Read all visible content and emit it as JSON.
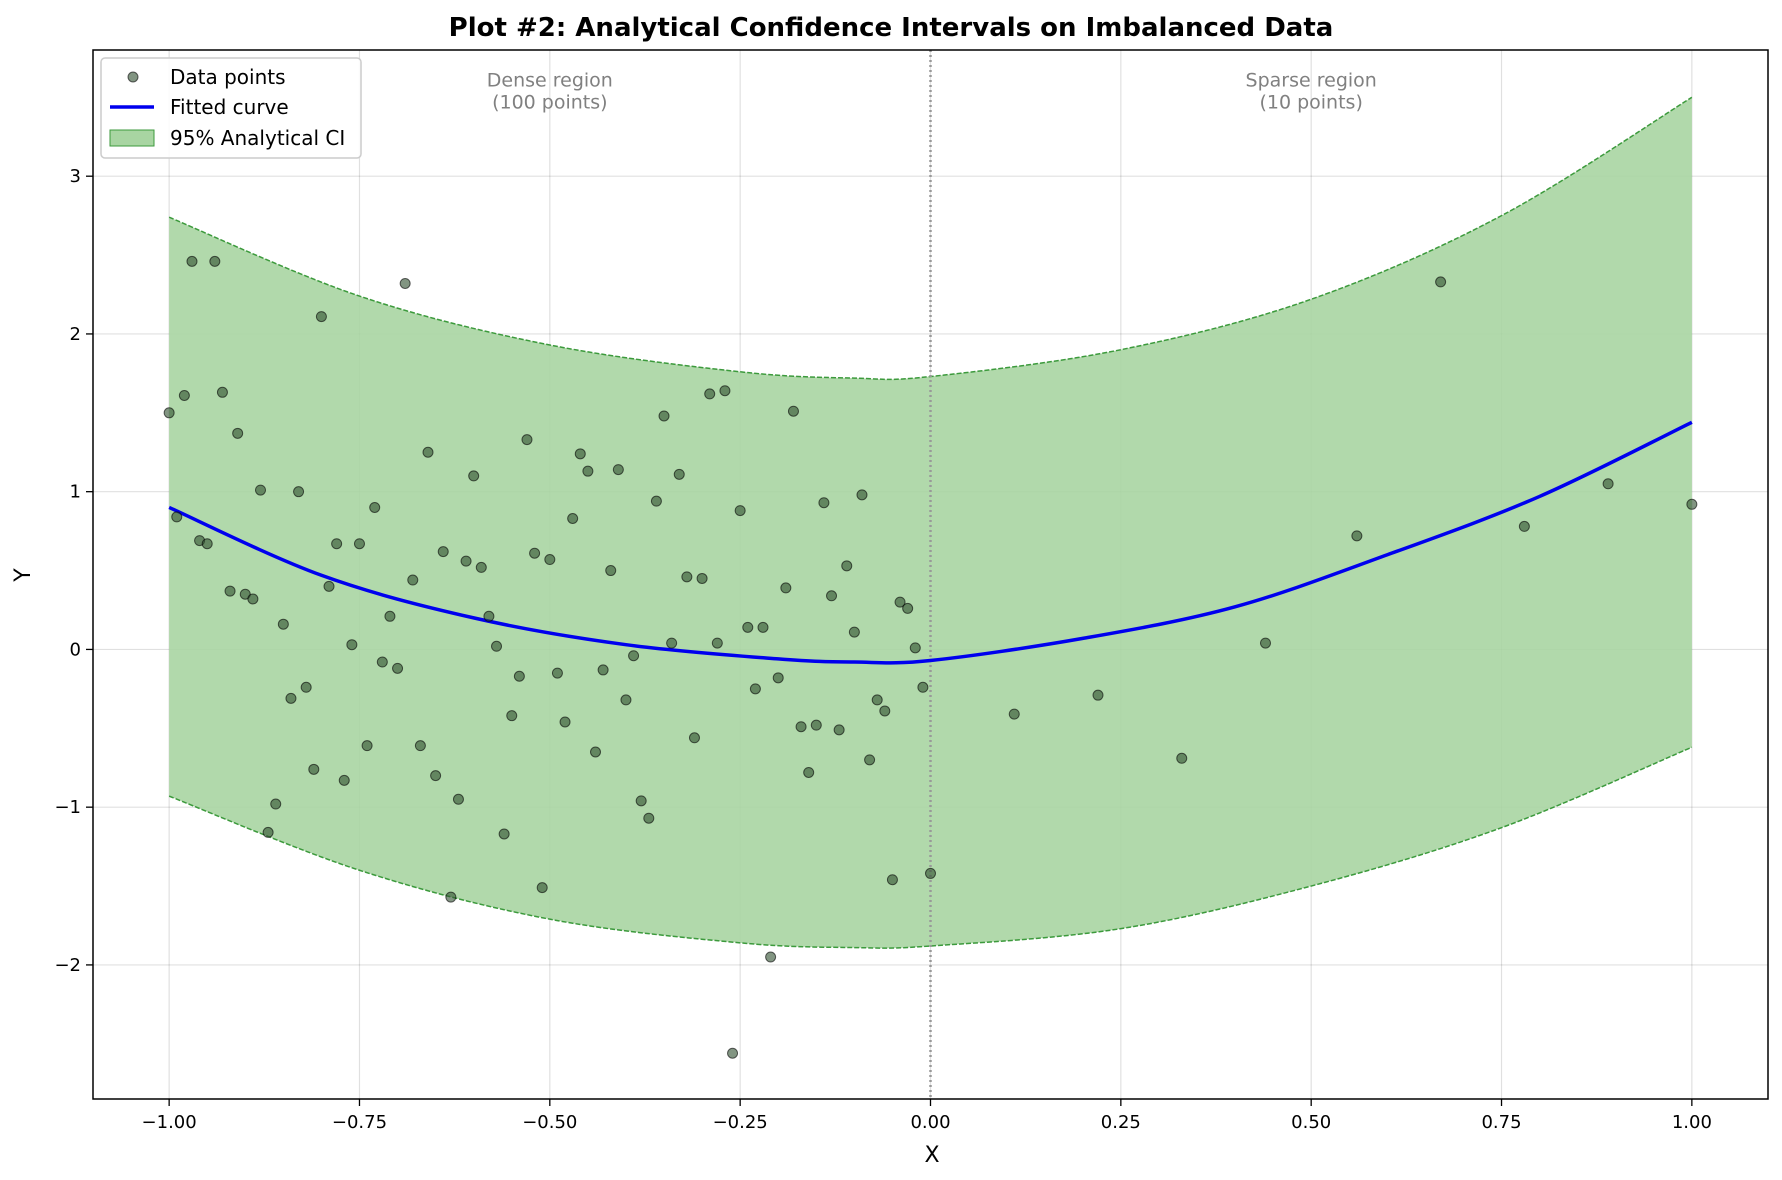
{
  "chart_data": {
    "type": "scatter",
    "title": "Plot #2: Analytical Confidence Intervals on Imbalanced Data",
    "xlabel": "X",
    "ylabel": "Y",
    "xlim": [
      -1.1,
      1.1
    ],
    "ylim": [
      -2.85,
      3.8
    ],
    "xticks": [
      -1.0,
      -0.75,
      -0.5,
      -0.25,
      0.0,
      0.25,
      0.5,
      0.75,
      1.0
    ],
    "xtick_labels": [
      "−1.00",
      "−0.75",
      "−0.50",
      "−0.25",
      "0.00",
      "0.25",
      "0.50",
      "0.75",
      "1.00"
    ],
    "yticks": [
      -2,
      -1,
      0,
      1,
      2,
      3
    ],
    "ytick_labels": [
      "−2",
      "−1",
      "0",
      "1",
      "2",
      "3"
    ],
    "grid": true,
    "legend_position": "top-left",
    "legend": [
      {
        "label": "Data points",
        "kind": "marker"
      },
      {
        "label": "Fitted curve",
        "kind": "line"
      },
      {
        "label": "95% Analytical CI",
        "kind": "patch"
      }
    ],
    "annotations": [
      {
        "lines": [
          "Dense region",
          "(100 points)"
        ],
        "x": -0.5,
        "y": 3.6
      },
      {
        "lines": [
          "Sparse region",
          "(10 points)"
        ],
        "x": 0.5,
        "y": 3.6
      }
    ],
    "vline_x": 0.0,
    "colors": {
      "points": "#2f4f2f",
      "curve": "#0000ee",
      "band_fill": "#a8d5a2",
      "band_edge": "#3c9a3c",
      "vline": "#999999",
      "annotation": "#808080"
    },
    "fitted_curve": {
      "x": [
        -1.0,
        -0.8,
        -0.6,
        -0.4,
        -0.2,
        -0.1,
        0.0,
        0.2,
        0.4,
        0.6,
        0.8,
        1.0
      ],
      "y": [
        0.9,
        0.47,
        0.2,
        0.03,
        -0.06,
        -0.08,
        -0.07,
        0.07,
        0.27,
        0.6,
        0.97,
        1.44
      ]
    },
    "ci_upper": {
      "x": [
        -1.0,
        -0.75,
        -0.5,
        -0.25,
        -0.1,
        0.0,
        0.25,
        0.5,
        0.75,
        1.0
      ],
      "y": [
        2.74,
        2.24,
        1.93,
        1.76,
        1.72,
        1.73,
        1.9,
        2.22,
        2.75,
        3.5
      ]
    },
    "ci_lower": {
      "x": [
        -1.0,
        -0.75,
        -0.5,
        -0.25,
        -0.1,
        0.0,
        0.25,
        0.5,
        0.75,
        1.0
      ],
      "y": [
        -0.93,
        -1.4,
        -1.71,
        -1.86,
        -1.89,
        -1.88,
        -1.77,
        -1.5,
        -1.13,
        -0.62
      ]
    },
    "series": [
      {
        "name": "Data points",
        "points": [
          [
            -1.0,
            1.5
          ],
          [
            -0.99,
            0.84
          ],
          [
            -0.98,
            1.61
          ],
          [
            -0.97,
            2.46
          ],
          [
            -0.96,
            0.69
          ],
          [
            -0.95,
            0.67
          ],
          [
            -0.94,
            2.46
          ],
          [
            -0.93,
            1.63
          ],
          [
            -0.92,
            0.37
          ],
          [
            -0.91,
            1.37
          ],
          [
            -0.9,
            0.35
          ],
          [
            -0.89,
            0.32
          ],
          [
            -0.88,
            1.01
          ],
          [
            -0.87,
            -1.16
          ],
          [
            -0.86,
            -0.98
          ],
          [
            -0.85,
            0.16
          ],
          [
            -0.84,
            -0.31
          ],
          [
            -0.83,
            1.0
          ],
          [
            -0.82,
            -0.24
          ],
          [
            -0.81,
            -0.76
          ],
          [
            -0.8,
            2.11
          ],
          [
            -0.79,
            0.4
          ],
          [
            -0.78,
            0.67
          ],
          [
            -0.77,
            -0.83
          ],
          [
            -0.76,
            0.03
          ],
          [
            -0.75,
            0.67
          ],
          [
            -0.74,
            -0.61
          ],
          [
            -0.73,
            0.9
          ],
          [
            -0.72,
            -0.08
          ],
          [
            -0.71,
            0.21
          ],
          [
            -0.7,
            -0.12
          ],
          [
            -0.69,
            2.32
          ],
          [
            -0.68,
            0.44
          ],
          [
            -0.67,
            -0.61
          ],
          [
            -0.66,
            1.25
          ],
          [
            -0.65,
            -0.8
          ],
          [
            -0.64,
            0.62
          ],
          [
            -0.63,
            -1.57
          ],
          [
            -0.62,
            -0.95
          ],
          [
            -0.61,
            0.56
          ],
          [
            -0.6,
            1.1
          ],
          [
            -0.59,
            0.52
          ],
          [
            -0.58,
            0.21
          ],
          [
            -0.57,
            0.02
          ],
          [
            -0.56,
            -1.17
          ],
          [
            -0.55,
            -0.42
          ],
          [
            -0.54,
            -0.17
          ],
          [
            -0.53,
            1.33
          ],
          [
            -0.52,
            0.61
          ],
          [
            -0.51,
            -1.51
          ],
          [
            -0.5,
            0.57
          ],
          [
            -0.49,
            -0.15
          ],
          [
            -0.48,
            -0.46
          ],
          [
            -0.47,
            0.83
          ],
          [
            -0.46,
            1.24
          ],
          [
            -0.45,
            1.13
          ],
          [
            -0.44,
            -0.65
          ],
          [
            -0.43,
            -0.13
          ],
          [
            -0.42,
            0.5
          ],
          [
            -0.41,
            1.14
          ],
          [
            -0.4,
            -0.32
          ],
          [
            -0.39,
            -0.04
          ],
          [
            -0.38,
            -0.96
          ],
          [
            -0.37,
            -1.07
          ],
          [
            -0.36,
            0.94
          ],
          [
            -0.35,
            1.48
          ],
          [
            -0.34,
            0.04
          ],
          [
            -0.33,
            1.11
          ],
          [
            -0.32,
            0.46
          ],
          [
            -0.31,
            -0.56
          ],
          [
            -0.3,
            0.45
          ],
          [
            -0.29,
            1.62
          ],
          [
            -0.28,
            0.04
          ],
          [
            -0.27,
            1.64
          ],
          [
            -0.26,
            -2.56
          ],
          [
            -0.25,
            0.88
          ],
          [
            -0.24,
            0.14
          ],
          [
            -0.23,
            -0.25
          ],
          [
            -0.22,
            0.14
          ],
          [
            -0.21,
            -1.95
          ],
          [
            -0.2,
            -0.18
          ],
          [
            -0.19,
            0.39
          ],
          [
            -0.18,
            1.51
          ],
          [
            -0.17,
            -0.49
          ],
          [
            -0.16,
            -0.78
          ],
          [
            -0.15,
            -0.48
          ],
          [
            -0.14,
            0.93
          ],
          [
            -0.13,
            0.34
          ],
          [
            -0.12,
            -0.51
          ],
          [
            -0.11,
            0.53
          ],
          [
            -0.1,
            0.11
          ],
          [
            -0.09,
            0.98
          ],
          [
            -0.08,
            -0.7
          ],
          [
            -0.07,
            -0.32
          ],
          [
            -0.06,
            -0.39
          ],
          [
            -0.05,
            -1.46
          ],
          [
            -0.04,
            0.3
          ],
          [
            -0.03,
            0.26
          ],
          [
            -0.02,
            0.01
          ],
          [
            -0.01,
            -0.24
          ],
          [
            0.0,
            -1.42
          ],
          [
            0.11,
            -0.41
          ],
          [
            0.22,
            -0.29
          ],
          [
            0.33,
            -0.69
          ],
          [
            0.44,
            0.04
          ],
          [
            0.56,
            0.72
          ],
          [
            0.67,
            2.33
          ],
          [
            0.78,
            0.78
          ],
          [
            0.89,
            1.05
          ],
          [
            1.0,
            0.92
          ]
        ]
      }
    ]
  }
}
